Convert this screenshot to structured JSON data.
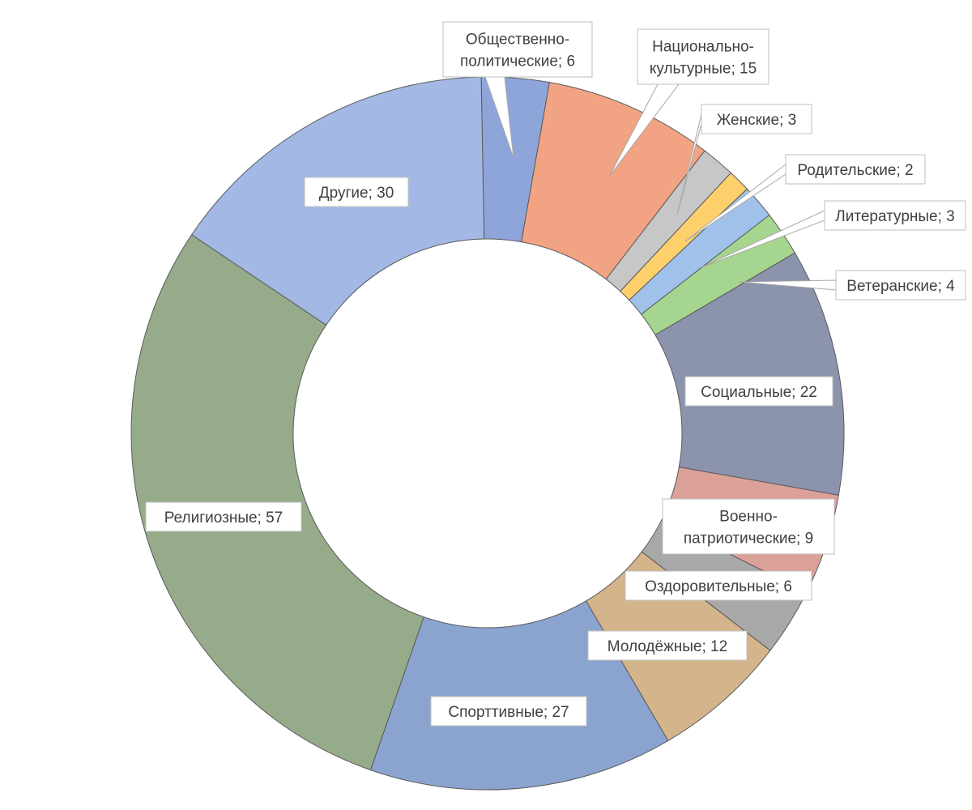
{
  "chart_data": {
    "type": "pie",
    "donut": true,
    "legend": "none",
    "slices": [
      {
        "label": "Общественно-политические",
        "text": [
          "Общественно-",
          "политические; 6"
        ],
        "value": 6,
        "color": "#8ea5d9"
      },
      {
        "label": "Национально-культурные",
        "text": [
          "Национально-",
          "культурные; 15"
        ],
        "value": 15,
        "color": "#f2a383"
      },
      {
        "label": "Женские",
        "text": [
          "Женские; 3"
        ],
        "value": 3,
        "color": "#c7c7c7"
      },
      {
        "label": "Родительские",
        "text": [
          "Родительские; 2"
        ],
        "value": 2,
        "color": "#fdd06c"
      },
      {
        "label": "Литературные",
        "text": [
          "Литературные; 3"
        ],
        "value": 3,
        "color": "#9fc1ea"
      },
      {
        "label": "Ветеранские",
        "text": [
          "Ветеранские; 4"
        ],
        "value": 4,
        "color": "#a6d58f"
      },
      {
        "label": "Социальные",
        "text": [
          "Социальные; 22"
        ],
        "value": 22,
        "color": "#8b93ad"
      },
      {
        "label": "Военно-патриотические",
        "text": [
          "Военно-",
          "патриотические; 9"
        ],
        "value": 9,
        "color": "#dba198"
      },
      {
        "label": "Оздоровительные",
        "text": [
          "Оздоровительные; 6"
        ],
        "value": 6,
        "color": "#a8a8a8"
      },
      {
        "label": "Молодёжные",
        "text": [
          "Молодёжные; 12"
        ],
        "value": 12,
        "color": "#d4b48a"
      },
      {
        "label": "Спорттивные",
        "text": [
          "Спорттивные; 27"
        ],
        "value": 27,
        "color": "#8ba4cf"
      },
      {
        "label": "Религиозные",
        "text": [
          "Религиозные; 57"
        ],
        "value": 57,
        "color": "#96ab8a"
      },
      {
        "label": "Другие",
        "text": [
          "Другие; 30"
        ],
        "value": 30,
        "color": "#a3b8e4"
      }
    ]
  }
}
